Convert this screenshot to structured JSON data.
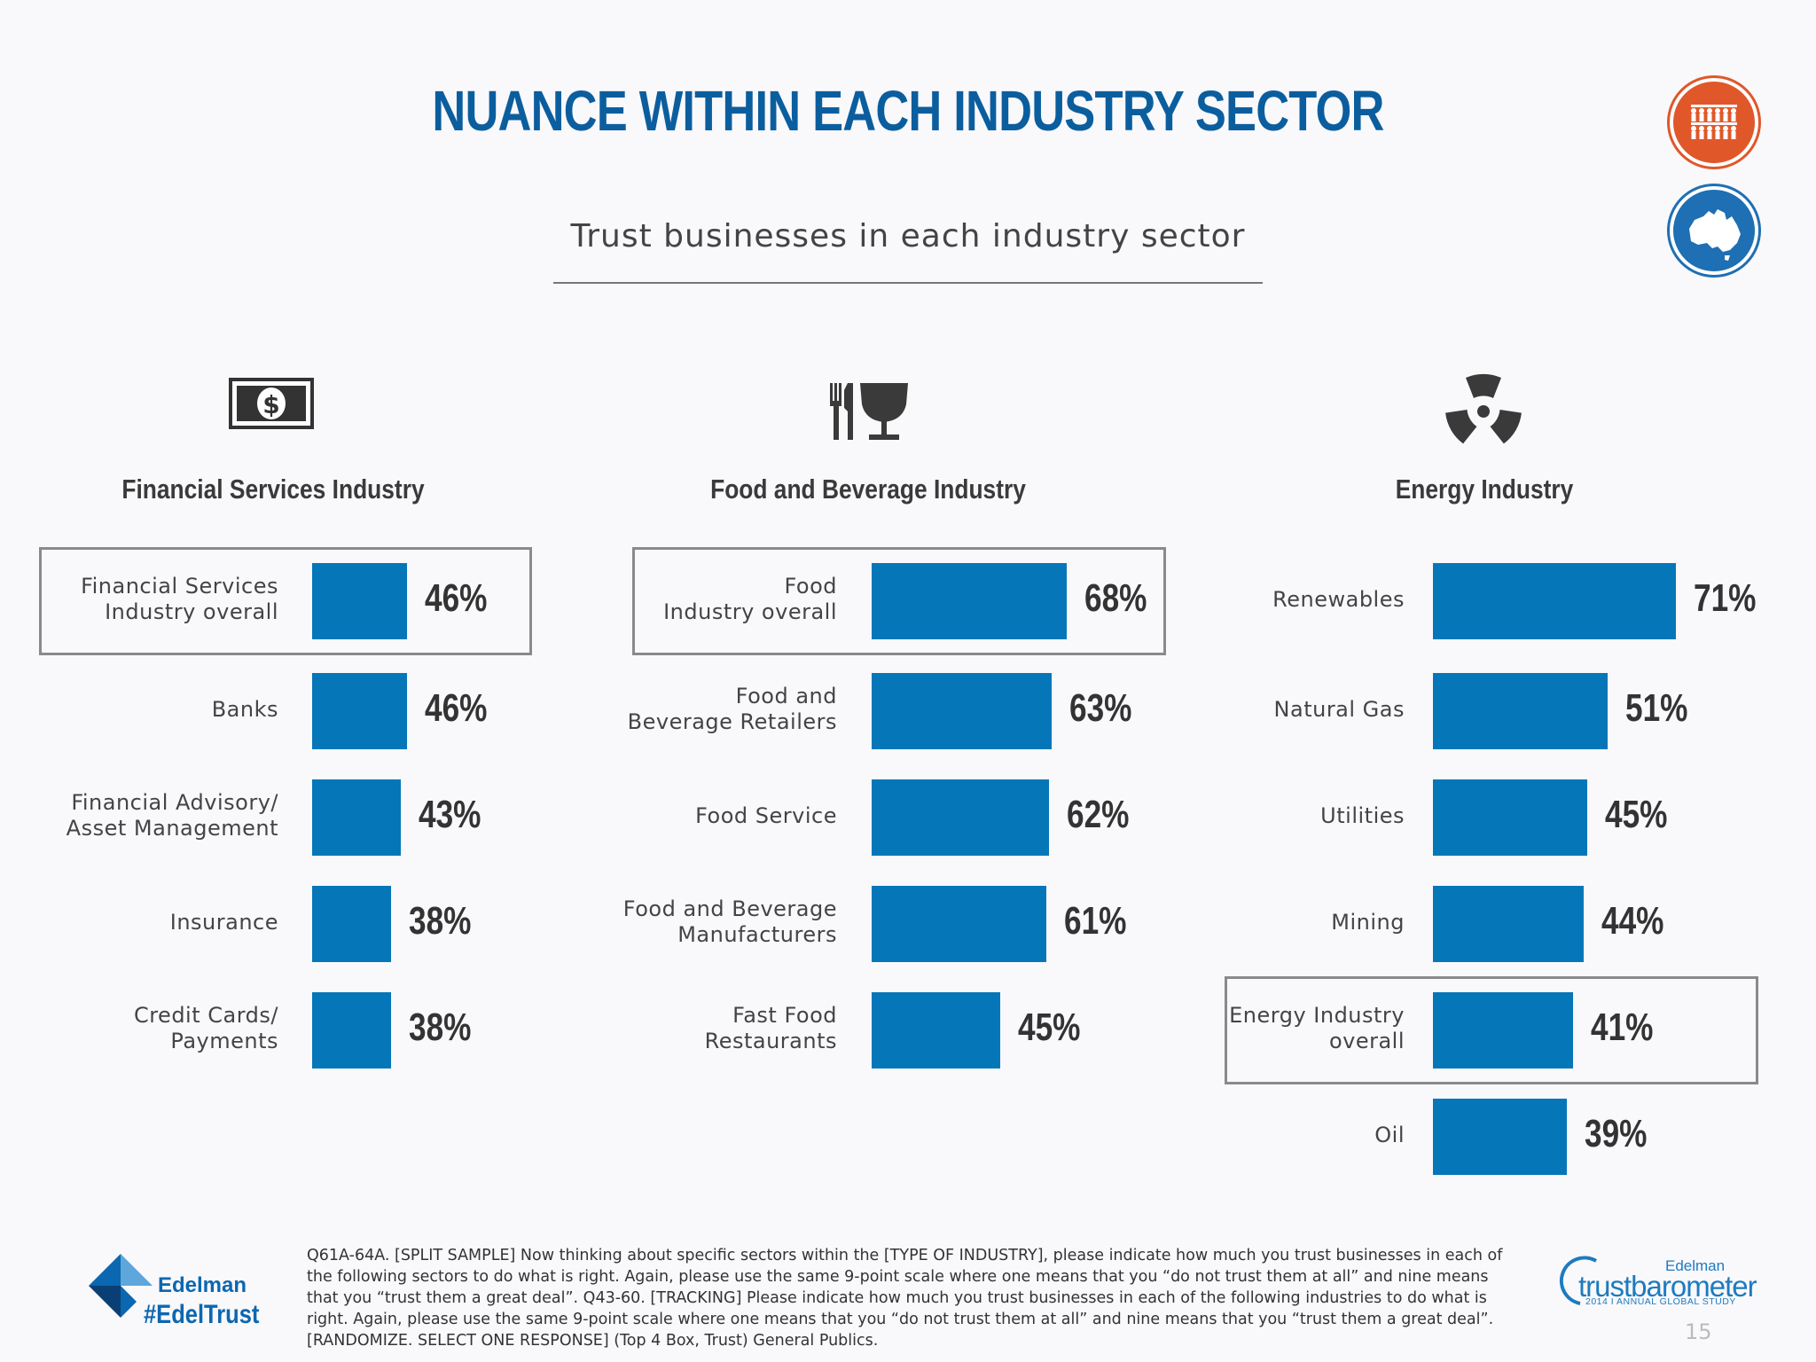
{
  "title": "NUANCE WITHIN EACH INDUSTRY SECTOR",
  "subtitle": "Trust businesses in each industry sector",
  "badges": [
    "people-icon",
    "australia-map-icon"
  ],
  "chart_data": [
    {
      "type": "bar",
      "orientation": "horizontal",
      "title": "Financial Services Industry",
      "icon": "dollar-bill-icon",
      "categories": [
        "Financial Services\nIndustry overall",
        "Banks",
        "Financial Advisory/\nAsset Management",
        "Insurance",
        "Credit Cards/\nPayments"
      ],
      "values": [
        46,
        46,
        43,
        38,
        38
      ],
      "value_labels": [
        "46%",
        "46%",
        "43%",
        "38%",
        "38%"
      ],
      "highlighted": "Financial Services\nIndustry overall",
      "xlim": [
        0,
        100
      ]
    },
    {
      "type": "bar",
      "orientation": "horizontal",
      "title": "Food and Beverage Industry",
      "icon": "fork-knife-glass-icon",
      "categories": [
        "Food\nIndustry overall",
        "Food and\nBeverage Retailers",
        "Food Service",
        "Food and Beverage\nManufacturers",
        "Fast Food\nRestaurants"
      ],
      "values": [
        68,
        63,
        62,
        61,
        45
      ],
      "value_labels": [
        "68%",
        "63%",
        "62%",
        "61%",
        "45%"
      ],
      "highlighted": "Food\nIndustry overall",
      "xlim": [
        0,
        100
      ]
    },
    {
      "type": "bar",
      "orientation": "horizontal",
      "title": "Energy Industry",
      "icon": "radiation-icon",
      "categories": [
        "Renewables",
        "Natural Gas",
        "Utilities",
        "Mining",
        "Energy Industry\noverall",
        "Oil"
      ],
      "values": [
        71,
        51,
        45,
        44,
        41,
        39
      ],
      "value_labels": [
        "71%",
        "51%",
        "45%",
        "44%",
        "41%",
        "39%"
      ],
      "highlighted": "Energy Industry\noverall",
      "xlim": [
        0,
        100
      ]
    }
  ],
  "footnote": "Q61A-64A. [SPLIT SAMPLE] Now thinking about specific sectors within the [TYPE OF INDUSTRY], please indicate how much you trust businesses in each of the following sectors to do what is right. Again, please use the same 9-point scale where one means that you “do not trust them at all” and nine means that you “trust them a great deal”. Q43-60. [TRACKING] Please indicate how much you trust businesses in each of the following industries to do what is right.  Again, please use the same 9-point scale where one means that you “do not trust them at all” and nine means that you “trust them a great deal”. [RANDOMIZE. SELECT ONE RESPONSE]  (Top 4 Box, Trust) General Publics.",
  "edelman": {
    "name": "Edelman",
    "hashtag": "#EdelTrust"
  },
  "trustbarometer": {
    "brand": "Edelman",
    "name": "trustbarometer",
    "study": "2014  I  ANNUAL GLOBAL STUDY"
  },
  "page_number": "15",
  "colors": {
    "title": "#0b5e9e",
    "bar": "#0577b9",
    "badge_people": "#e0572a",
    "badge_map": "#1e6fb3"
  }
}
